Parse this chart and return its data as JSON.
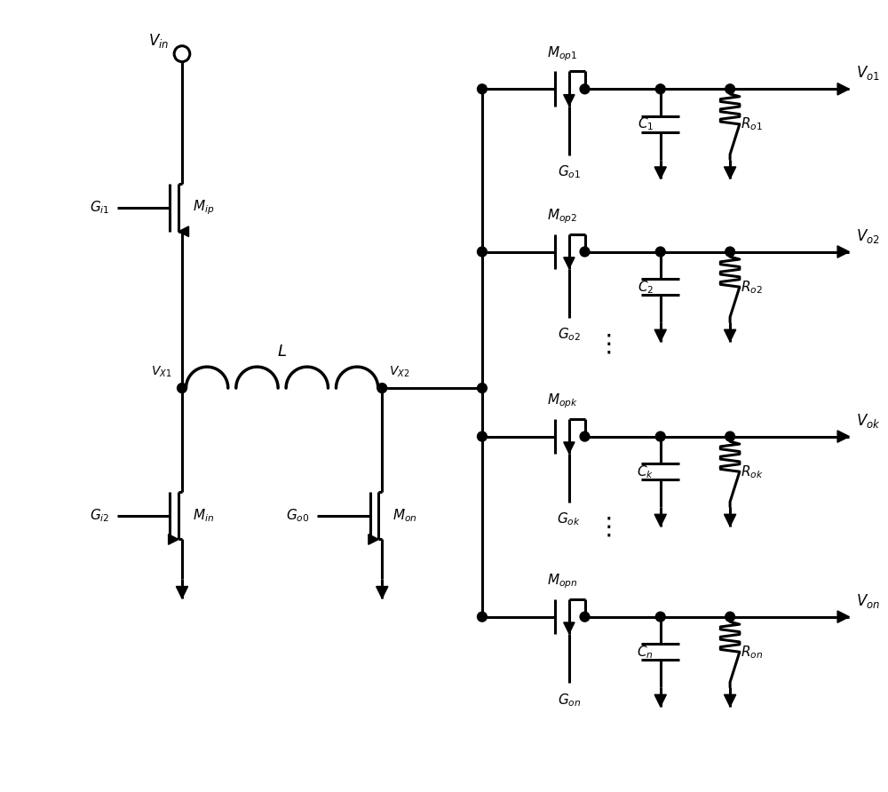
{
  "figure_width": 10.0,
  "figure_height": 8.92,
  "bg_color": "#ffffff",
  "line_color": "#000000",
  "lw": 2.2,
  "lw_thin": 1.8
}
